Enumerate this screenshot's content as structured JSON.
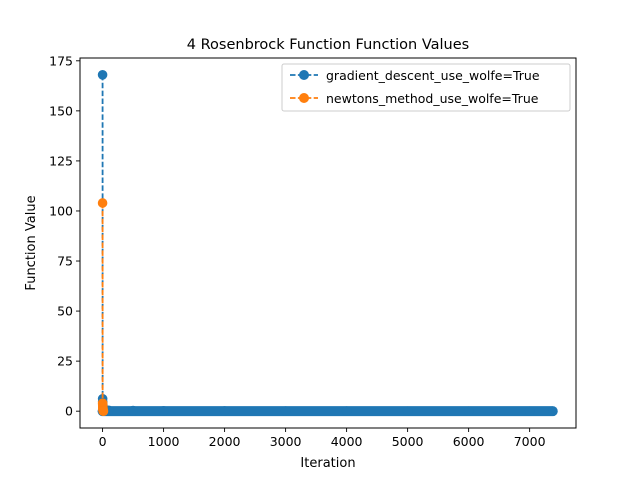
{
  "chart_data": {
    "type": "line",
    "title": "4 Rosenbrock Function Function Values",
    "xlabel": "Iteration",
    "ylabel": "Function Value",
    "xlim": [
      -370,
      7760
    ],
    "ylim": [
      -8.4,
      176.4
    ],
    "xticks": [
      0,
      1000,
      2000,
      3000,
      4000,
      5000,
      6000,
      7000
    ],
    "yticks": [
      0,
      25,
      50,
      75,
      100,
      125,
      150,
      175
    ],
    "grid": false,
    "legend_position": "top-right",
    "series": [
      {
        "name": "gradient_descent_use_wolfe=True",
        "color": "#1f77b4",
        "linestyle": "dashed",
        "marker": "circle",
        "iterations": 7380,
        "x": [
          0,
          1,
          2,
          3,
          4,
          5,
          6,
          8,
          10,
          15,
          20,
          30,
          50,
          100,
          500,
          1000,
          2000,
          3000,
          4000,
          5000,
          6000,
          7000,
          7379
        ],
        "y": [
          168,
          6.2,
          4.8,
          3.9,
          3.3,
          2.8,
          2.4,
          1.9,
          1.6,
          1.2,
          1.0,
          0.8,
          0.6,
          0.45,
          0.3,
          0.2,
          0.1,
          0.06,
          0.04,
          0.02,
          0.01,
          0.005,
          0.003
        ]
      },
      {
        "name": "newtons_method_use_wolfe=True",
        "color": "#ff7f0e",
        "linestyle": "dashed",
        "marker": "circle",
        "x": [
          0,
          1,
          2,
          3,
          4,
          5,
          6,
          7,
          8,
          9,
          10,
          12,
          14
        ],
        "y": [
          104,
          4.0,
          3.2,
          2.6,
          2.0,
          1.5,
          1.1,
          0.8,
          0.5,
          0.3,
          0.15,
          0.05,
          0.0
        ]
      }
    ]
  }
}
